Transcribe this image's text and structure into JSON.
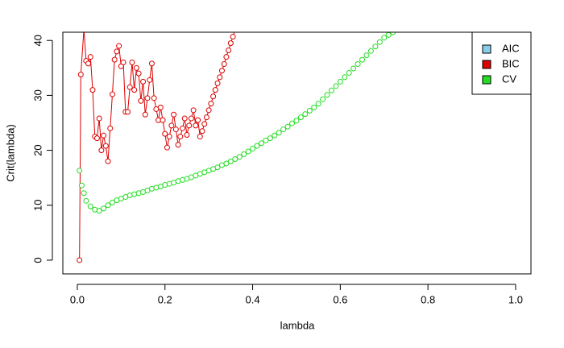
{
  "chart_data": {
    "type": "line-points",
    "xlabel": "lambda",
    "ylabel": "Crit(lambda)",
    "xlim": [
      -0.033,
      1.035
    ],
    "ylim": [
      -2.5,
      41.5
    ],
    "xticks": [
      {
        "value": 0,
        "label": "0.0"
      },
      0.2,
      0.4,
      0.6,
      0.8,
      {
        "value": 1,
        "label": "1.0"
      }
    ],
    "yticks": [
      0,
      10,
      20,
      30,
      40
    ],
    "legend": "topright",
    "series": [
      {
        "name": "AIC",
        "color": "#87ceeb",
        "style": "points-line",
        "x": [],
        "values": []
      },
      {
        "name": "BIC",
        "color": "#dd0000",
        "style": "points-line",
        "x": [
          0.005,
          0.008,
          0.015,
          0.02,
          0.025,
          0.03,
          0.035,
          0.04,
          0.045,
          0.05,
          0.055,
          0.06,
          0.065,
          0.07,
          0.075,
          0.08,
          0.085,
          0.09,
          0.095,
          0.1,
          0.105,
          0.11,
          0.115,
          0.12,
          0.125,
          0.13,
          0.135,
          0.14,
          0.145,
          0.15,
          0.155,
          0.16,
          0.165,
          0.17,
          0.175,
          0.18,
          0.185,
          0.19,
          0.195,
          0.2,
          0.205,
          0.21,
          0.215,
          0.22,
          0.225,
          0.23,
          0.235,
          0.24,
          0.245,
          0.25,
          0.255,
          0.26,
          0.265,
          0.27,
          0.275,
          0.28,
          0.285,
          0.29,
          0.295,
          0.3,
          0.305,
          0.31,
          0.315,
          0.32,
          0.325,
          0.33,
          0.335,
          0.34,
          0.345,
          0.35,
          0.355,
          0.36
        ],
        "values": [
          0,
          33.8,
          42,
          36.3,
          35.8,
          37,
          31,
          22.5,
          22.2,
          25.8,
          20,
          22.7,
          20.8,
          18,
          24,
          30.2,
          36.5,
          38,
          39,
          35.3,
          36,
          27,
          27,
          31.5,
          36,
          31,
          35,
          34,
          29,
          32.5,
          26.5,
          29.5,
          32.8,
          35.8,
          29.5,
          27.5,
          25.5,
          27.8,
          25.5,
          23,
          20.5,
          22.5,
          24.5,
          26.5,
          23.8,
          21,
          22.5,
          24,
          25.8,
          22.8,
          24.5,
          25.8,
          27.3,
          24.5,
          25.5,
          22.5,
          23.5,
          24.8,
          26,
          27.3,
          28.5,
          29.8,
          31,
          32.2,
          33.3,
          34.5,
          35.7,
          37,
          38.2,
          39.5,
          40.7,
          42
        ]
      },
      {
        "name": "CV",
        "color": "#22dd22",
        "style": "points",
        "x": [
          0.005,
          0.01,
          0.015,
          0.02,
          0.03,
          0.04,
          0.05,
          0.06,
          0.07,
          0.08,
          0.09,
          0.1,
          0.11,
          0.12,
          0.13,
          0.14,
          0.15,
          0.16,
          0.17,
          0.18,
          0.19,
          0.2,
          0.21,
          0.22,
          0.23,
          0.24,
          0.25,
          0.26,
          0.27,
          0.28,
          0.29,
          0.3,
          0.31,
          0.32,
          0.33,
          0.34,
          0.35,
          0.36,
          0.37,
          0.38,
          0.39,
          0.4,
          0.41,
          0.42,
          0.43,
          0.44,
          0.45,
          0.46,
          0.47,
          0.48,
          0.49,
          0.5,
          0.51,
          0.52,
          0.53,
          0.54,
          0.55,
          0.56,
          0.57,
          0.58,
          0.59,
          0.6,
          0.61,
          0.62,
          0.63,
          0.64,
          0.65,
          0.66,
          0.67,
          0.68,
          0.69,
          0.7,
          0.71,
          0.72
        ],
        "values": [
          16.3,
          13.6,
          12.2,
          10.8,
          9.8,
          9.2,
          9.0,
          9.4,
          10.0,
          10.5,
          10.9,
          11.2,
          11.5,
          11.8,
          12.0,
          12.2,
          12.4,
          12.7,
          13.0,
          13.2,
          13.4,
          13.7,
          13.9,
          14.1,
          14.4,
          14.6,
          14.8,
          15.1,
          15.4,
          15.7,
          16.0,
          16.3,
          16.6,
          16.9,
          17.3,
          17.6,
          18.0,
          18.4,
          18.8,
          19.3,
          19.8,
          20.3,
          20.8,
          21.3,
          21.8,
          22.2,
          22.7,
          23.2,
          23.8,
          24.3,
          24.9,
          25.4,
          26.0,
          26.6,
          27.2,
          27.8,
          28.5,
          29.3,
          30.1,
          30.9,
          31.7,
          32.5,
          33.3,
          34.1,
          34.9,
          35.7,
          36.5,
          37.3,
          38.1,
          38.9,
          39.7,
          40.5,
          41.0,
          41.5
        ]
      }
    ]
  }
}
